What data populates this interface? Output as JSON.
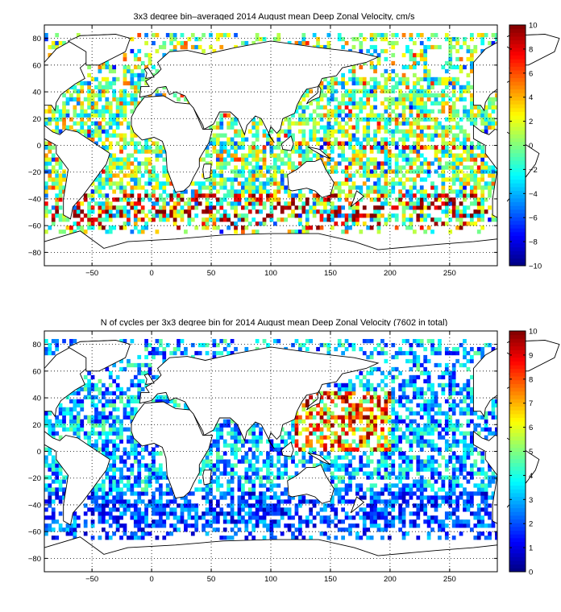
{
  "chart_data": [
    {
      "type": "heatmap",
      "title": "3x3 degree bin–averaged 2014 August mean Deep Zonal Velocity, cm/s",
      "xlim": [
        -90,
        290
      ],
      "ylim": [
        -90,
        90
      ],
      "x_ticks": [
        -50,
        0,
        50,
        100,
        150,
        200,
        250
      ],
      "x_tick_labels": [
        "−50",
        "0",
        "50",
        "100",
        "150",
        "200",
        "250"
      ],
      "y_ticks": [
        -80,
        -60,
        -40,
        -20,
        0,
        20,
        40,
        60,
        80
      ],
      "y_tick_labels": [
        "−80",
        "−60",
        "−40",
        "−20",
        "0",
        "20",
        "40",
        "60",
        "80"
      ],
      "grid": true,
      "colorbar": {
        "range": [
          -10,
          10
        ],
        "ticks": [
          -10,
          -8,
          -6,
          -4,
          -2,
          0,
          2,
          4,
          6,
          8,
          10
        ],
        "tick_labels": [
          "−10",
          "−8",
          "−6",
          "−4",
          "−2",
          "0",
          "2",
          "4",
          "6",
          "8",
          "10"
        ],
        "colormap": "jet",
        "position": "right"
      },
      "bin_size_deg": 3,
      "seed": 7
    },
    {
      "type": "heatmap",
      "title": "N of cycles per 3x3 degree bin for 2014 August mean Deep Zonal Velocity (7602 in total)",
      "xlim": [
        -90,
        290
      ],
      "ylim": [
        -90,
        90
      ],
      "x_ticks": [
        -50,
        0,
        50,
        100,
        150,
        200,
        250
      ],
      "x_tick_labels": [
        "−50",
        "0",
        "50",
        "100",
        "150",
        "200",
        "250"
      ],
      "y_ticks": [
        -80,
        -60,
        -40,
        -20,
        0,
        20,
        40,
        60,
        80
      ],
      "y_tick_labels": [
        "−80",
        "−60",
        "−40",
        "−20",
        "0",
        "20",
        "40",
        "60",
        "80"
      ],
      "grid": true,
      "colorbar": {
        "range": [
          0,
          10
        ],
        "ticks": [
          0,
          1,
          2,
          3,
          4,
          5,
          6,
          7,
          8,
          9,
          10
        ],
        "tick_labels": [
          "0",
          "1",
          "2",
          "3",
          "4",
          "5",
          "6",
          "7",
          "8",
          "9",
          "10"
        ],
        "colormap": "jet",
        "position": "right"
      },
      "bin_size_deg": 3,
      "seed": 13
    }
  ]
}
